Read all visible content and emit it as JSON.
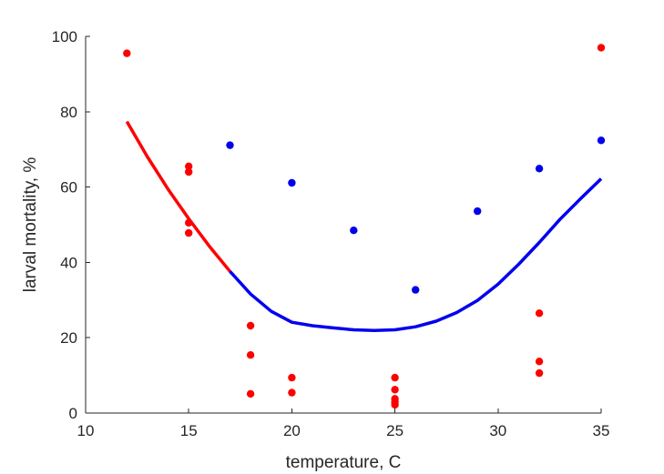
{
  "chart_data": {
    "type": "scatter",
    "xlabel": "temperature, C",
    "ylabel": "larval mortality, %",
    "xlim": [
      10,
      35
    ],
    "ylim": [
      0,
      100
    ],
    "xticks": [
      "10",
      "15",
      "20",
      "25",
      "30",
      "35"
    ],
    "yticks": [
      "0",
      "20",
      "40",
      "60",
      "80",
      "100"
    ],
    "grid": false,
    "colors": {
      "red": "#ff0000",
      "blue": "#0000ee",
      "axis": "#262626"
    },
    "series": [
      {
        "color": "#ff0000",
        "points": [
          [
            12,
            95.5
          ],
          [
            15,
            65.5
          ],
          [
            15,
            64
          ],
          [
            15,
            50.5
          ],
          [
            15,
            47.8
          ],
          [
            18,
            23.2
          ],
          [
            18,
            15.4
          ],
          [
            18,
            5.1
          ],
          [
            20,
            9.4
          ],
          [
            20,
            5.4
          ],
          [
            25,
            9.4
          ],
          [
            25,
            6.2
          ],
          [
            25,
            3.8
          ],
          [
            25,
            2.9
          ],
          [
            25,
            2.2
          ],
          [
            32,
            26.5
          ],
          [
            32,
            13.7
          ],
          [
            32,
            10.6
          ],
          [
            35,
            97
          ]
        ]
      },
      {
        "color": "#0000ee",
        "points": [
          [
            17,
            71.1
          ],
          [
            20,
            61.1
          ],
          [
            23,
            48.5
          ],
          [
            26,
            32.7
          ],
          [
            29,
            53.6
          ],
          [
            32,
            64.9
          ],
          [
            35,
            72.4
          ]
        ]
      }
    ],
    "fit_lines": [
      {
        "color": "#ff0000",
        "points": [
          [
            12,
            77.4
          ],
          [
            13,
            68
          ],
          [
            14,
            59.4
          ],
          [
            15,
            51.6
          ],
          [
            16,
            44.3
          ],
          [
            17,
            37.6
          ]
        ]
      },
      {
        "color": "#0000ee",
        "points": [
          [
            17,
            37.6
          ],
          [
            18,
            31.6
          ],
          [
            19,
            27
          ],
          [
            20,
            24.1
          ],
          [
            21,
            23.2
          ],
          [
            22,
            22.6
          ],
          [
            23,
            22.1
          ],
          [
            24,
            21.9
          ],
          [
            25,
            22.1
          ],
          [
            26,
            22.9
          ],
          [
            27,
            24.4
          ],
          [
            28,
            26.7
          ],
          [
            29,
            29.9
          ],
          [
            30,
            34.2
          ],
          [
            31,
            39.5
          ],
          [
            32,
            45.3
          ],
          [
            33,
            51.4
          ],
          [
            34,
            56.9
          ],
          [
            35,
            62.2
          ]
        ]
      }
    ]
  }
}
